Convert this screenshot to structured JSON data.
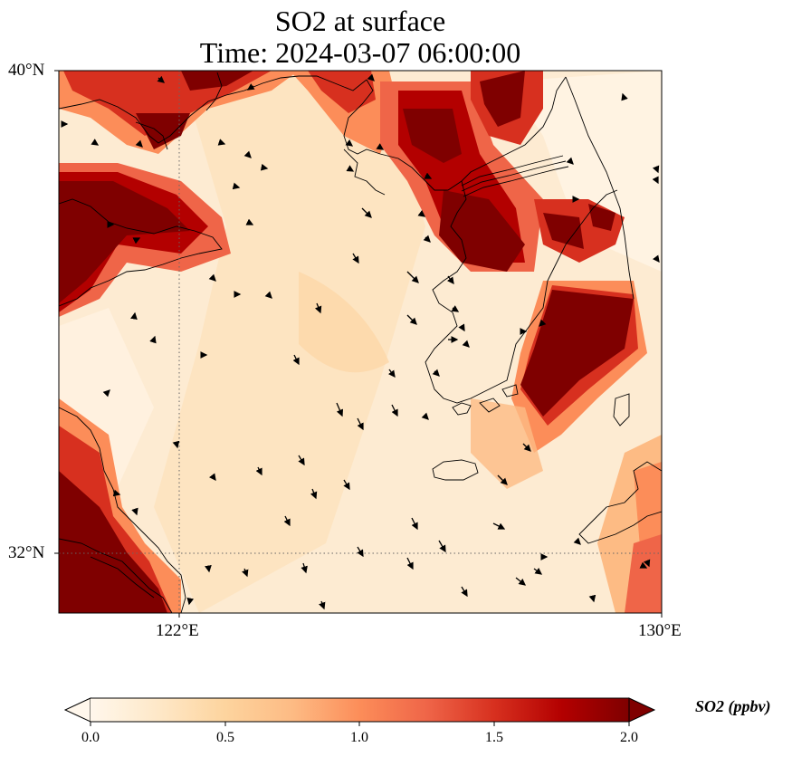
{
  "figure": {
    "title_line1": "SO2 at surface",
    "title_line2": "Time: 2024-03-07 06:00:00"
  },
  "map": {
    "lat_range": [
      31.0,
      40.0
    ],
    "lon_range": [
      120.0,
      130.0
    ],
    "lat_labels": [
      "40°N",
      "32°N"
    ],
    "lon_labels": [
      "122°E",
      "130°E"
    ],
    "gridlines": {
      "lon": 122,
      "lat": 32,
      "style": "dotted"
    },
    "field": "SO2 concentration (filled raster)",
    "overlays": [
      "coastlines",
      "wind vectors (black arrows)"
    ]
  },
  "colorbar": {
    "label": "SO2 (ppbv)",
    "colormap": "OrRd",
    "range": [
      0.0,
      2.0
    ],
    "ticks": [
      "0.0",
      "0.5",
      "1.0",
      "1.5",
      "2.0"
    ],
    "extend": "both",
    "colors": [
      "#fff7ec",
      "#fee8c8",
      "#fdd49e",
      "#fdbb84",
      "#fc8d59",
      "#ef6548",
      "#d7301f",
      "#b30000",
      "#7f0000"
    ]
  }
}
